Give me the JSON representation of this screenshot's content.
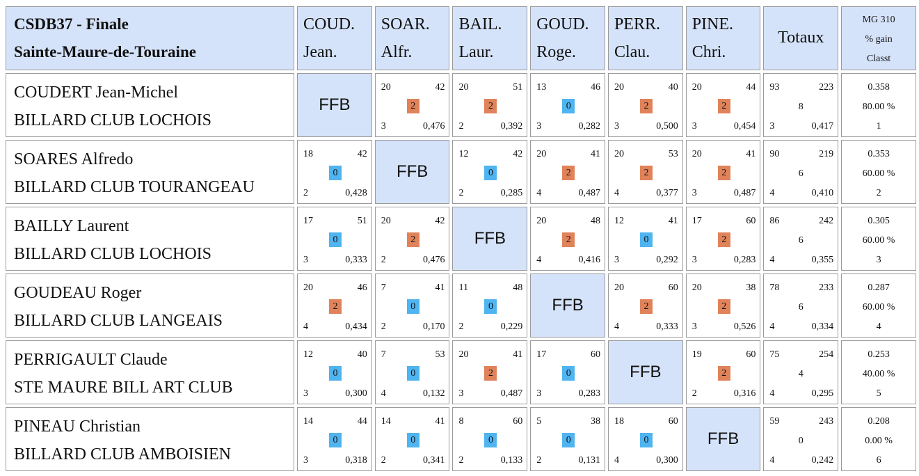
{
  "title": {
    "line1": "CSDB37 - Finale",
    "line2": "Sainte-Maure-de-Touraine"
  },
  "columns": [
    {
      "l1": "COUD.",
      "l2": "Jean."
    },
    {
      "l1": "SOAR.",
      "l2": "Alfr."
    },
    {
      "l1": "BAIL.",
      "l2": "Laur."
    },
    {
      "l1": "GOUD.",
      "l2": "Roge."
    },
    {
      "l1": "PERR.",
      "l2": "Clau."
    },
    {
      "l1": "PINE.",
      "l2": "Chri."
    }
  ],
  "totals_header": "Totaux",
  "mg_header": {
    "l1": "MG 310",
    "l2": "% gain",
    "l3": "Classt"
  },
  "self_label": "FFB",
  "colors": {
    "header_bg": "#d5e3fa",
    "win": "#e0835a",
    "loss": "#4fb4f0",
    "border": "#9a9a9a"
  },
  "players": [
    {
      "name": "COUDERT Jean-Michel",
      "club": "BILLARD CLUB LOCHOIS",
      "results": [
        null,
        {
          "pts": "20",
          "rep": "42",
          "mp": "2",
          "ser": "3",
          "moy": "0,476"
        },
        {
          "pts": "20",
          "rep": "51",
          "mp": "2",
          "ser": "2",
          "moy": "0,392"
        },
        {
          "pts": "13",
          "rep": "46",
          "mp": "0",
          "ser": "3",
          "moy": "0,282"
        },
        {
          "pts": "20",
          "rep": "40",
          "mp": "2",
          "ser": "3",
          "moy": "0,500"
        },
        {
          "pts": "20",
          "rep": "44",
          "mp": "2",
          "ser": "3",
          "moy": "0,454"
        }
      ],
      "totals": {
        "pts": "93",
        "rep": "223",
        "mp": "8",
        "ser": "3",
        "moy": "0,417"
      },
      "mg": {
        "mg": "0.358",
        "pct": "80.00 %",
        "rank": "1"
      }
    },
    {
      "name": "SOARES Alfredo",
      "club": "BILLARD CLUB TOURANGEAU",
      "results": [
        {
          "pts": "18",
          "rep": "42",
          "mp": "0",
          "ser": "2",
          "moy": "0,428"
        },
        null,
        {
          "pts": "12",
          "rep": "42",
          "mp": "0",
          "ser": "2",
          "moy": "0,285"
        },
        {
          "pts": "20",
          "rep": "41",
          "mp": "2",
          "ser": "4",
          "moy": "0,487"
        },
        {
          "pts": "20",
          "rep": "53",
          "mp": "2",
          "ser": "4",
          "moy": "0,377"
        },
        {
          "pts": "20",
          "rep": "41",
          "mp": "2",
          "ser": "3",
          "moy": "0,487"
        }
      ],
      "totals": {
        "pts": "90",
        "rep": "219",
        "mp": "6",
        "ser": "4",
        "moy": "0,410"
      },
      "mg": {
        "mg": "0.353",
        "pct": "60.00 %",
        "rank": "2"
      }
    },
    {
      "name": "BAILLY Laurent",
      "club": "BILLARD CLUB LOCHOIS",
      "results": [
        {
          "pts": "17",
          "rep": "51",
          "mp": "0",
          "ser": "3",
          "moy": "0,333"
        },
        {
          "pts": "20",
          "rep": "42",
          "mp": "2",
          "ser": "2",
          "moy": "0,476"
        },
        null,
        {
          "pts": "20",
          "rep": "48",
          "mp": "2",
          "ser": "4",
          "moy": "0,416"
        },
        {
          "pts": "12",
          "rep": "41",
          "mp": "0",
          "ser": "3",
          "moy": "0,292"
        },
        {
          "pts": "17",
          "rep": "60",
          "mp": "2",
          "ser": "3",
          "moy": "0,283"
        }
      ],
      "totals": {
        "pts": "86",
        "rep": "242",
        "mp": "6",
        "ser": "4",
        "moy": "0,355"
      },
      "mg": {
        "mg": "0.305",
        "pct": "60.00 %",
        "rank": "3"
      }
    },
    {
      "name": "GOUDEAU Roger",
      "club": "BILLARD CLUB LANGEAIS",
      "results": [
        {
          "pts": "20",
          "rep": "46",
          "mp": "2",
          "ser": "4",
          "moy": "0,434"
        },
        {
          "pts": "7",
          "rep": "41",
          "mp": "0",
          "ser": "2",
          "moy": "0,170"
        },
        {
          "pts": "11",
          "rep": "48",
          "mp": "0",
          "ser": "2",
          "moy": "0,229"
        },
        null,
        {
          "pts": "20",
          "rep": "60",
          "mp": "2",
          "ser": "4",
          "moy": "0,333"
        },
        {
          "pts": "20",
          "rep": "38",
          "mp": "2",
          "ser": "3",
          "moy": "0,526"
        }
      ],
      "totals": {
        "pts": "78",
        "rep": "233",
        "mp": "6",
        "ser": "4",
        "moy": "0,334"
      },
      "mg": {
        "mg": "0.287",
        "pct": "60.00 %",
        "rank": "4"
      }
    },
    {
      "name": "PERRIGAULT Claude",
      "club": "STE MAURE BILL ART CLUB",
      "results": [
        {
          "pts": "12",
          "rep": "40",
          "mp": "0",
          "ser": "3",
          "moy": "0,300"
        },
        {
          "pts": "7",
          "rep": "53",
          "mp": "0",
          "ser": "4",
          "moy": "0,132"
        },
        {
          "pts": "20",
          "rep": "41",
          "mp": "2",
          "ser": "3",
          "moy": "0,487"
        },
        {
          "pts": "17",
          "rep": "60",
          "mp": "0",
          "ser": "3",
          "moy": "0,283"
        },
        null,
        {
          "pts": "19",
          "rep": "60",
          "mp": "2",
          "ser": "2",
          "moy": "0,316"
        }
      ],
      "totals": {
        "pts": "75",
        "rep": "254",
        "mp": "4",
        "ser": "4",
        "moy": "0,295"
      },
      "mg": {
        "mg": "0.253",
        "pct": "40.00 %",
        "rank": "5"
      }
    },
    {
      "name": "PINEAU Christian",
      "club": "BILLARD CLUB AMBOISIEN",
      "results": [
        {
          "pts": "14",
          "rep": "44",
          "mp": "0",
          "ser": "3",
          "moy": "0,318"
        },
        {
          "pts": "14",
          "rep": "41",
          "mp": "0",
          "ser": "2",
          "moy": "0,341"
        },
        {
          "pts": "8",
          "rep": "60",
          "mp": "0",
          "ser": "2",
          "moy": "0,133"
        },
        {
          "pts": "5",
          "rep": "38",
          "mp": "0",
          "ser": "2",
          "moy": "0,131"
        },
        {
          "pts": "18",
          "rep": "60",
          "mp": "0",
          "ser": "4",
          "moy": "0,300"
        },
        null
      ],
      "totals": {
        "pts": "59",
        "rep": "243",
        "mp": "0",
        "ser": "4",
        "moy": "0,242"
      },
      "mg": {
        "mg": "0.208",
        "pct": "0.00 %",
        "rank": "6"
      }
    }
  ]
}
